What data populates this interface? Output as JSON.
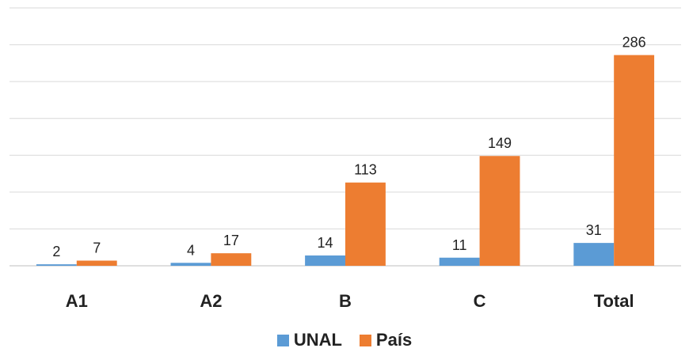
{
  "chart_data": {
    "type": "bar",
    "categories": [
      "A1",
      "A2",
      "B",
      "C",
      "Total"
    ],
    "series": [
      {
        "name": "UNAL",
        "values": [
          2,
          4,
          14,
          11,
          31
        ],
        "color": "#5b9bd5"
      },
      {
        "name": "País",
        "values": [
          7,
          17,
          113,
          149,
          286
        ],
        "color": "#ed7d31"
      }
    ],
    "ylim": [
      0,
      350
    ],
    "y_grid_step": 50,
    "grid": true,
    "show_y_tick_labels": false,
    "data_labels": true,
    "legend_position": "bottom"
  }
}
